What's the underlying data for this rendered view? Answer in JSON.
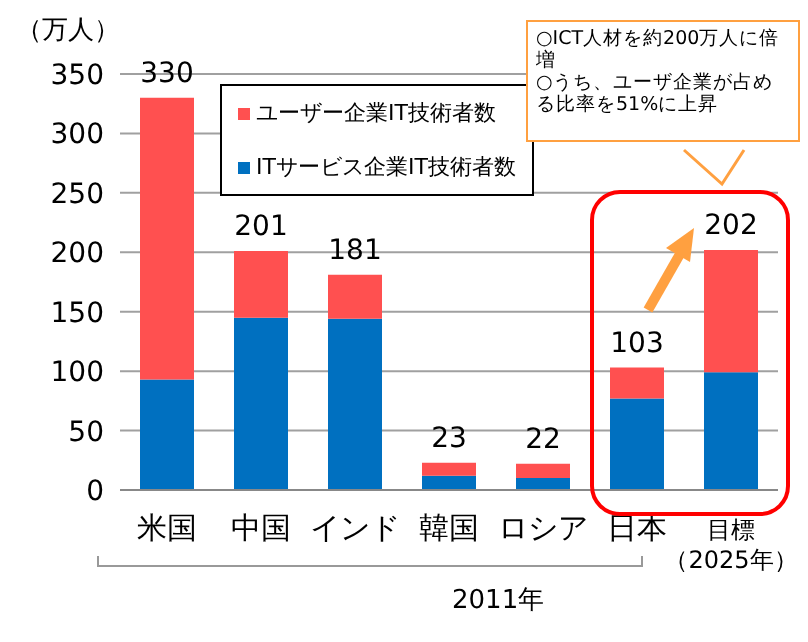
{
  "chart_data": {
    "type": "bar",
    "stacked": true,
    "ylabel": "（万人）",
    "categories": [
      "米国",
      "中国",
      "インド",
      "韓国",
      "ロシア",
      "日本",
      "目標（2025年）"
    ],
    "series": [
      {
        "name": "ITサービス企業IT技術者数",
        "color": "#0070c0",
        "values": [
          93,
          145,
          144,
          12,
          10,
          77,
          99
        ]
      },
      {
        "name": "ユーザー企業IT技術者数",
        "color": "#ff5050",
        "values": [
          237,
          56,
          37,
          11,
          12,
          26,
          103
        ]
      }
    ],
    "totals": [
      "330",
      "201",
      "181",
      "23",
      "22",
      "103",
      "202"
    ],
    "ylim": [
      0,
      350
    ],
    "yticks": [
      0,
      50,
      100,
      150,
      200,
      250,
      300,
      350
    ],
    "grid": "y",
    "legend": "top left",
    "annotations": [
      "2011年",
      "○ICT人材を約200万人に倍増",
      "○うち、ユーザ企業が占める比率を51%に上昇"
    ]
  }
}
